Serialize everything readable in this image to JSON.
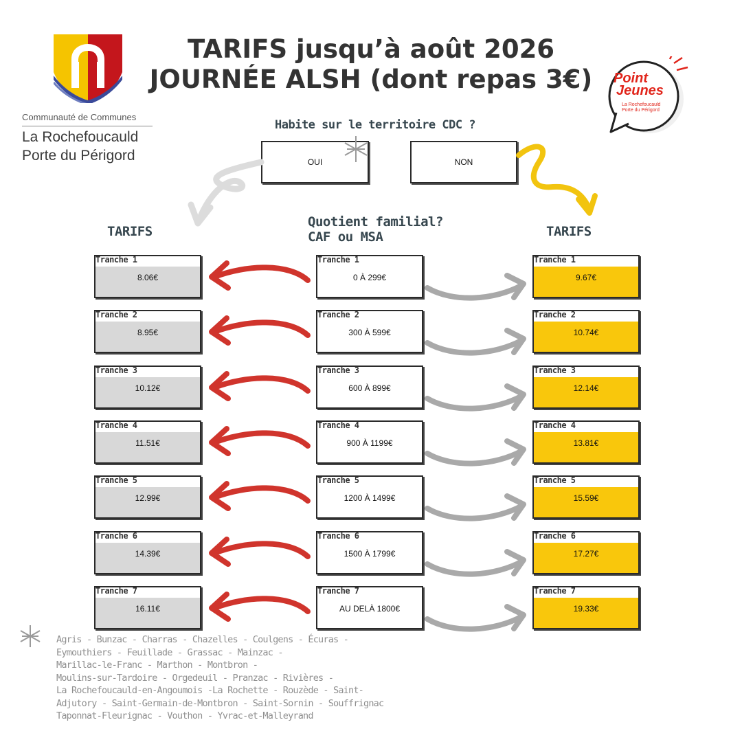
{
  "header": {
    "title_line1": "TARIFS jusqu’à août 2026",
    "title_line2": "JOURNÉE ALSH (dont repas 3€)"
  },
  "logo": {
    "line1": "Communauté de Communes",
    "line2": "La Rochefoucauld",
    "line3": "Porte du Périgord"
  },
  "badge": {
    "line1": "Point",
    "line2": "Jeunes",
    "sub1": "La Rochefoucauld",
    "sub2": "Porte du Périgord"
  },
  "question": "Habite sur le territoire CDC ?",
  "choices": {
    "yes": "OUI",
    "no": "NON"
  },
  "qf_label_line1": "Quotient familial?",
  "qf_label_line2": "CAF ou MSA",
  "tarifs_left_label": "TARIFS",
  "tarifs_right_label": "TARIFS",
  "tranches": [
    {
      "name": "Tranche 1",
      "qf": "0 À 299€",
      "cdc": "8.06€",
      "hors_cdc": "9.67€"
    },
    {
      "name": "Tranche 2",
      "qf": "300 À 599€",
      "cdc": "8.95€",
      "hors_cdc": "10.74€"
    },
    {
      "name": "Tranche 3",
      "qf": "600 À 899€",
      "cdc": "10.12€",
      "hors_cdc": "12.14€"
    },
    {
      "name": "Tranche 4",
      "qf": "900 À 1199€",
      "cdc": "11.51€",
      "hors_cdc": "13.81€"
    },
    {
      "name": "Tranche 5",
      "qf": "1200 À 1499€",
      "cdc": "12.99€",
      "hors_cdc": "15.59€"
    },
    {
      "name": "Tranche 6",
      "qf": "1500 À 1799€",
      "cdc": "14.39€",
      "hors_cdc": "17.27€"
    },
    {
      "name": "Tranche 7",
      "qf": "AU DELÀ 1800€",
      "cdc": "16.11€",
      "hors_cdc": "19.33€"
    }
  ],
  "communes": [
    "Agris - Bunzac - Charras - Chazelles - Coulgens - Écuras -",
    "Eymouthiers - Feuillade - Grassac - Mainzac -",
    "Marillac-le-Franc - Marthon - Montbron -",
    "Moulins-sur-Tardoire - Orgedeuil - Pranzac - Rivières -",
    "La Rochefoucauld-en-Angoumois -La Rochette - Rouzède - Saint-",
    "Adjutory - Saint-Germain-de-Montbron - Saint-Sornin - Souffrignac",
    "Taponnat-Fleurignac - Vouthon - Yvrac-et-Malleyrand"
  ],
  "colors": {
    "cdc_fill": "#d8d8d8",
    "hors_cdc_fill": "#f9c70c",
    "red_arrow": "#d0342c",
    "grey_arrow": "#a9a9a9",
    "yellow_arrow": "#f2c40f",
    "logo_yellow": "#f5c400",
    "logo_red": "#c4161c",
    "logo_blue": "#3a4a9a",
    "badge_red": "#e1251b"
  }
}
